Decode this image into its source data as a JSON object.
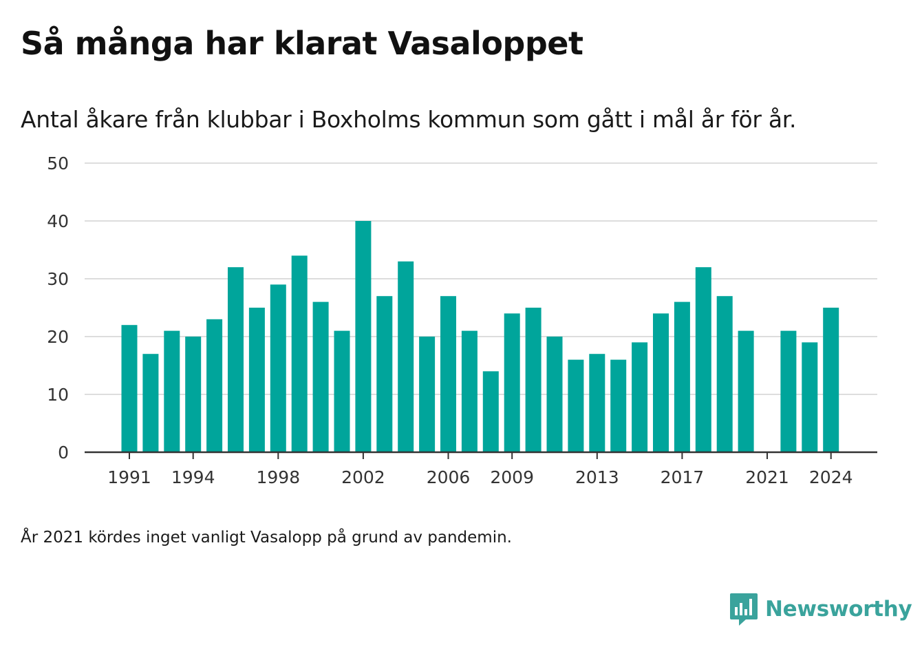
{
  "title": "Så många har klarat Vasaloppet",
  "subtitle": "Antal åkare från klubbar i Boxholms kommun som gått i mål år för år.",
  "footnote": "År 2021 kördes inget vanligt Vasalopp på grund av pandemin.",
  "brand": {
    "name": "Newsworthy",
    "icon": "newsworthy-logo-icon"
  },
  "colors": {
    "bar": "#00a59b",
    "grid": "#dddddd",
    "axis": "#333333",
    "brand": "#3aa39c"
  },
  "chart_data": {
    "type": "bar",
    "x": [
      1991,
      1992,
      1993,
      1994,
      1995,
      1996,
      1997,
      1998,
      1999,
      2000,
      2001,
      2002,
      2003,
      2004,
      2005,
      2006,
      2007,
      2008,
      2009,
      2010,
      2011,
      2012,
      2013,
      2014,
      2015,
      2016,
      2017,
      2018,
      2019,
      2020,
      2021,
      2022,
      2023,
      2024
    ],
    "values": [
      22,
      17,
      21,
      20,
      23,
      32,
      25,
      29,
      34,
      26,
      21,
      40,
      27,
      33,
      20,
      27,
      21,
      14,
      24,
      25,
      20,
      16,
      17,
      16,
      19,
      24,
      26,
      32,
      27,
      21,
      null,
      21,
      19,
      25
    ],
    "x_ticks": [
      "1991",
      "1994",
      "1998",
      "2002",
      "2006",
      "2009",
      "2013",
      "2017",
      "2021",
      "2024"
    ],
    "y_ticks": [
      "0",
      "10",
      "20",
      "30",
      "40",
      "50"
    ],
    "ylim": [
      0,
      50
    ],
    "grid": true,
    "legend": false
  }
}
